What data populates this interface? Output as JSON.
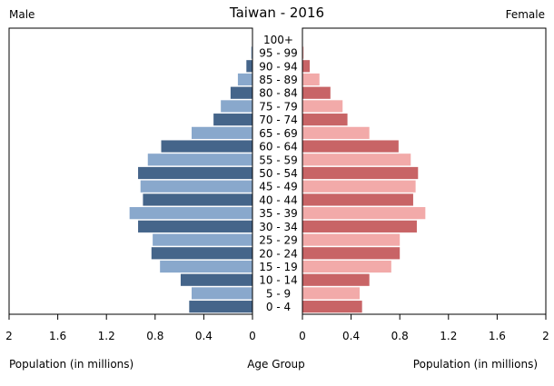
{
  "chart_data": {
    "type": "bar",
    "title": "Taiwan - 2016",
    "left_label": "Male",
    "right_label": "Female",
    "left_axis_label": "Population (in millions)",
    "center_axis_label": "Age Group",
    "right_axis_label": "Population (in millions)",
    "categories": [
      "0 - 4",
      "5 - 9",
      "10 - 14",
      "15 - 19",
      "20 - 24",
      "25 - 29",
      "30 - 34",
      "35 - 39",
      "40 - 44",
      "45 - 49",
      "50 - 54",
      "55 - 59",
      "60 - 64",
      "65 - 69",
      "70 - 74",
      "75 - 79",
      "80 - 84",
      "85 - 89",
      "90 - 94",
      "95 - 99",
      "100+"
    ],
    "xlim": [
      0,
      2
    ],
    "ticks": [
      2,
      1.6,
      1.2,
      0.8,
      0.4,
      0
    ],
    "right_ticks": [
      0,
      0.4,
      0.8,
      1.2,
      1.6,
      2
    ],
    "series": [
      {
        "name": "Male",
        "values": [
          0.52,
          0.5,
          0.59,
          0.76,
          0.83,
          0.82,
          0.94,
          1.01,
          0.9,
          0.92,
          0.94,
          0.86,
          0.75,
          0.5,
          0.32,
          0.26,
          0.18,
          0.12,
          0.05,
          0.01,
          0.003
        ]
      },
      {
        "name": "Female",
        "values": [
          0.49,
          0.47,
          0.55,
          0.73,
          0.8,
          0.8,
          0.94,
          1.01,
          0.91,
          0.93,
          0.95,
          0.89,
          0.79,
          0.55,
          0.37,
          0.33,
          0.23,
          0.14,
          0.06,
          0.01,
          0.002
        ]
      }
    ],
    "colors": {
      "male_dark": "#45658a",
      "male_light": "#89a8cc",
      "female_dark": "#c86466",
      "female_light": "#f2aaa9"
    }
  }
}
